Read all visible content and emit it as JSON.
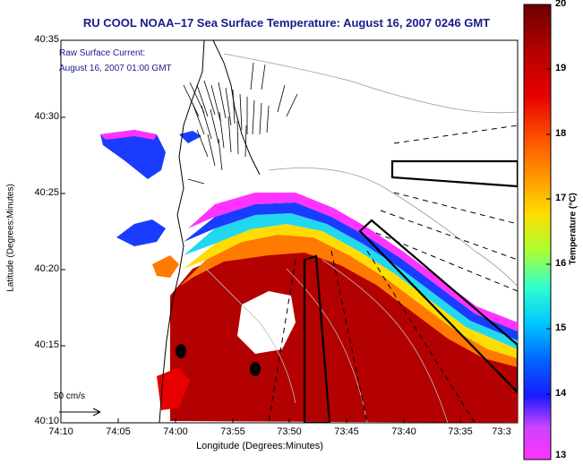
{
  "title": "RU COOL  NOAA–17  Sea Surface Temperature:  August 16, 2007 0246 GMT",
  "legend": {
    "line1": "Raw Surface Current:",
    "line2": "August 16, 2007 01:00 GMT"
  },
  "axes": {
    "xlabel": "Longitude (Degrees:Minutes)",
    "ylabel": "Latitude (Degrees:Minutes)",
    "xticks": [
      "74:10",
      "74:05",
      "74:00",
      "73:55",
      "73:50",
      "73:45",
      "73:40",
      "73:35",
      "73:3"
    ],
    "yticks": [
      "40:35",
      "40:30",
      "40:25",
      "40:20",
      "40:15",
      "40:10"
    ]
  },
  "colorbar": {
    "label": "Temperature (°C)",
    "ticks": [
      "20",
      "19",
      "18",
      "17",
      "16",
      "15",
      "14",
      "13"
    ],
    "range": [
      13,
      20
    ],
    "colors": [
      "#6b0000",
      "#b30000",
      "#e60000",
      "#ff5500",
      "#ff9900",
      "#ffdd00",
      "#aaff33",
      "#33ffcc",
      "#00c8ff",
      "#0066ff",
      "#1a1aff",
      "#cc44ff",
      "#ff33ff"
    ]
  },
  "scale": {
    "label": "50 cm/s"
  }
}
